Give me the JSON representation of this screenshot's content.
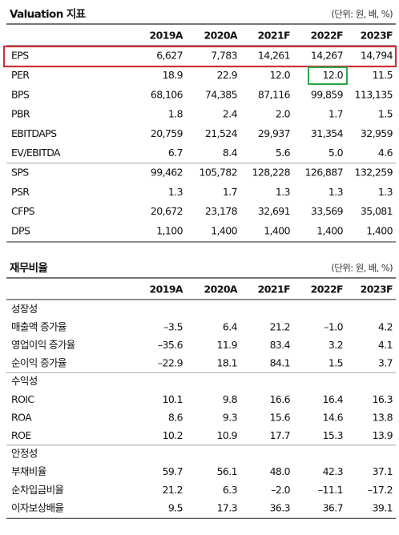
{
  "valuation": {
    "title": "Valuation 지표",
    "unit": "(단위: 원, 배, %)",
    "columns": [
      "2019A",
      "2020A",
      "2021F",
      "2022F",
      "2023F"
    ],
    "rows": [
      [
        "EPS",
        "6,627",
        "7,783",
        "14,261",
        "14,267",
        "14,794"
      ],
      [
        "PER",
        "18.9",
        "22.9",
        "12.0",
        "12.0",
        "11.5"
      ],
      [
        "BPS",
        "68,106",
        "74,385",
        "87,116",
        "99,859",
        "113,135"
      ],
      [
        "PBR",
        "1.8",
        "2.4",
        "2.0",
        "1.7",
        "1.5"
      ],
      [
        "EBITDAPS",
        "20,759",
        "21,524",
        "29,937",
        "31,354",
        "32,959"
      ],
      [
        "EV/EBITDA",
        "6.7",
        "8.4",
        "5.6",
        "5.0",
        "4.6"
      ],
      [
        "SPS",
        "99,462",
        "105,782",
        "128,228",
        "126,887",
        "132,259"
      ],
      [
        "PSR",
        "1.3",
        "1.7",
        "1.3",
        "1.3",
        "1.3"
      ],
      [
        "CFPS",
        "20,672",
        "23,178",
        "32,691",
        "33,569",
        "35,081"
      ],
      [
        "DPS",
        "1,100",
        "1,400",
        "1,400",
        "1,400",
        "1,400"
      ]
    ]
  },
  "ratios": {
    "title": "재무비율",
    "unit": "(단위: 원, 배, %)",
    "columns": [
      "2019A",
      "2020A",
      "2021F",
      "2022F",
      "2023F"
    ],
    "rows": [
      [
        "성장성"
      ],
      [
        "매출액 증가율",
        "–3.5",
        "6.4",
        "21.2",
        "–1.0",
        "4.2"
      ],
      [
        "영업이익 증가율",
        "–35.6",
        "11.9",
        "83.4",
        "3.2",
        "4.1"
      ],
      [
        "순이익 증가율",
        "–22.9",
        "18.1",
        "84.1",
        "1.5",
        "3.7"
      ],
      [
        "수익성"
      ],
      [
        "ROIC",
        "10.1",
        "9.8",
        "16.6",
        "16.4",
        "16.3"
      ],
      [
        "ROA",
        "8.6",
        "9.3",
        "15.6",
        "14.6",
        "13.8"
      ],
      [
        "ROE",
        "10.2",
        "10.9",
        "17.7",
        "15.3",
        "13.9"
      ],
      [
        "안정성"
      ],
      [
        "부채비율",
        "59.7",
        "56.1",
        "48.0",
        "42.3",
        "37.1"
      ],
      [
        "순차입금비율",
        "21.2",
        "6.3",
        "–2.0",
        "–11.1",
        "–17.2"
      ],
      [
        "이자보상배율",
        "9.5",
        "17.3",
        "36.3",
        "36.7",
        "39.1"
      ]
    ]
  }
}
